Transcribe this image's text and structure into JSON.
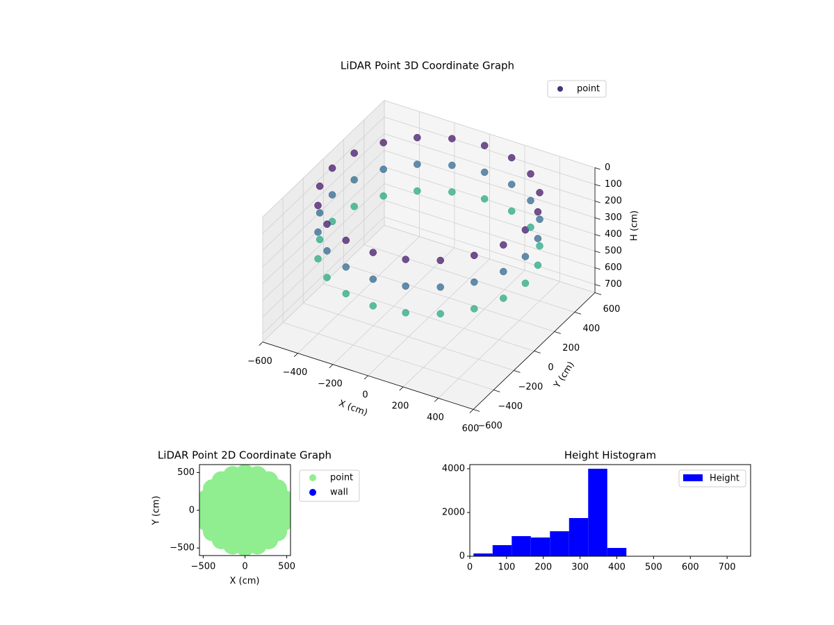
{
  "chart_data": [
    {
      "type": "scatter3d",
      "title": "LiDAR Point 3D Coordinate Graph",
      "xlabel": "X (cm)",
      "ylabel": "Y (cm)",
      "zlabel": "H (cm)",
      "xlim": [
        -600,
        600
      ],
      "ylim": [
        -600,
        600
      ],
      "zlim": [
        750,
        0
      ],
      "xticks": [
        {
          "value": -600,
          "label": "−600"
        },
        {
          "value": -400,
          "label": "−400"
        },
        {
          "value": -200,
          "label": "−200"
        },
        0,
        200,
        400,
        600
      ],
      "yticks": [
        {
          "value": -600,
          "label": "−600"
        },
        {
          "value": -400,
          "label": "−400"
        },
        {
          "value": -200,
          "label": "−200"
        },
        0,
        200,
        400,
        600
      ],
      "zticks": [
        0,
        100,
        200,
        300,
        400,
        500,
        600,
        700
      ],
      "legend": "upper right",
      "cmap": "viridis",
      "series": [
        {
          "name": "point",
          "color": "#46327e",
          "x": [
            550,
            550,
            550,
            523,
            523,
            523,
            445,
            445,
            445,
            323,
            323,
            323,
            170,
            170,
            170,
            0,
            0,
            0,
            -170,
            -170,
            -170,
            -323,
            -323,
            -323,
            -445,
            -445,
            -445,
            -523,
            -523,
            -523,
            -550,
            -550,
            -550,
            -523,
            -523,
            -523,
            -445,
            -445,
            -445,
            -323,
            -323,
            -323,
            -170,
            -170,
            -170,
            0,
            0,
            0,
            170,
            170,
            170,
            323,
            323,
            323,
            445,
            445,
            445,
            523,
            523,
            523
          ],
          "y": [
            0,
            0,
            0,
            170,
            170,
            170,
            323,
            323,
            323,
            445,
            445,
            445,
            523,
            523,
            523,
            550,
            550,
            550,
            523,
            523,
            523,
            445,
            445,
            445,
            323,
            323,
            323,
            170,
            170,
            170,
            0,
            0,
            0,
            -170,
            -170,
            -170,
            -323,
            -323,
            -323,
            -445,
            -445,
            -445,
            -523,
            -523,
            -523,
            -550,
            -550,
            -550,
            -523,
            -523,
            -523,
            -445,
            -445,
            -445,
            -323,
            -323,
            -323,
            -170,
            -170,
            -170
          ],
          "z": [
            40,
            200,
            360,
            40,
            200,
            360,
            40,
            200,
            360,
            40,
            200,
            360,
            40,
            200,
            360,
            40,
            200,
            360,
            40,
            200,
            360,
            40,
            200,
            360,
            40,
            200,
            360,
            40,
            200,
            360,
            40,
            200,
            360,
            40,
            200,
            360,
            40,
            200,
            360,
            40,
            200,
            360,
            40,
            200,
            360,
            40,
            200,
            360,
            40,
            200,
            360,
            40,
            200,
            360,
            40,
            200,
            360,
            40,
            200,
            360
          ]
        }
      ]
    },
    {
      "type": "scatter",
      "title": "LiDAR Point 2D Coordinate Graph",
      "xlabel": "X (cm)",
      "ylabel": "Y (cm)",
      "xlim": [
        -545,
        545
      ],
      "ylim": [
        -600,
        605
      ],
      "xticks": [
        {
          "value": -500,
          "label": "−500"
        },
        0,
        500
      ],
      "yticks": [
        {
          "value": -500,
          "label": "−500"
        },
        0,
        500
      ],
      "legend": "outside right",
      "series": [
        {
          "name": "point",
          "color": "#90ee90",
          "x": [
            0,
            120,
            60,
            -60,
            -120,
            -60,
            60,
            300,
            260,
            150,
            0,
            -150,
            -260,
            -300,
            -260,
            -150,
            0,
            150,
            260,
            480,
            457,
            388,
            282,
            148,
            0,
            -148,
            -282,
            -388,
            -457,
            -480,
            -457,
            -388,
            -282,
            -148,
            0,
            148,
            282,
            388,
            457
          ],
          "y": [
            0,
            0,
            104,
            104,
            0,
            -104,
            -104,
            0,
            150,
            260,
            300,
            260,
            150,
            0,
            -150,
            -260,
            -300,
            -260,
            -150,
            0,
            148,
            282,
            388,
            457,
            480,
            457,
            388,
            282,
            148,
            0,
            -148,
            -282,
            -388,
            -457,
            -480,
            -457,
            -388,
            -282,
            -148
          ]
        },
        {
          "name": "wall",
          "color": "#0000ff",
          "x": [],
          "y": []
        }
      ]
    },
    {
      "type": "histogram",
      "title": "Height Histogram",
      "name": "Height",
      "color": "#0000ff",
      "bins": [
        10,
        62,
        114,
        166,
        218,
        270,
        322,
        374,
        426,
        478,
        530,
        582,
        634,
        686,
        738
      ],
      "values": [
        127,
        508,
        920,
        857,
        1143,
        1746,
        4000,
        380,
        0,
        0,
        0,
        0,
        0,
        0
      ],
      "xlim": [
        0,
        764
      ],
      "ylim": [
        0,
        4190
      ],
      "xticks": [
        0,
        100,
        200,
        300,
        400,
        500,
        600,
        700
      ],
      "yticks": [
        0,
        2000,
        4000
      ],
      "legend": "upper right"
    }
  ]
}
